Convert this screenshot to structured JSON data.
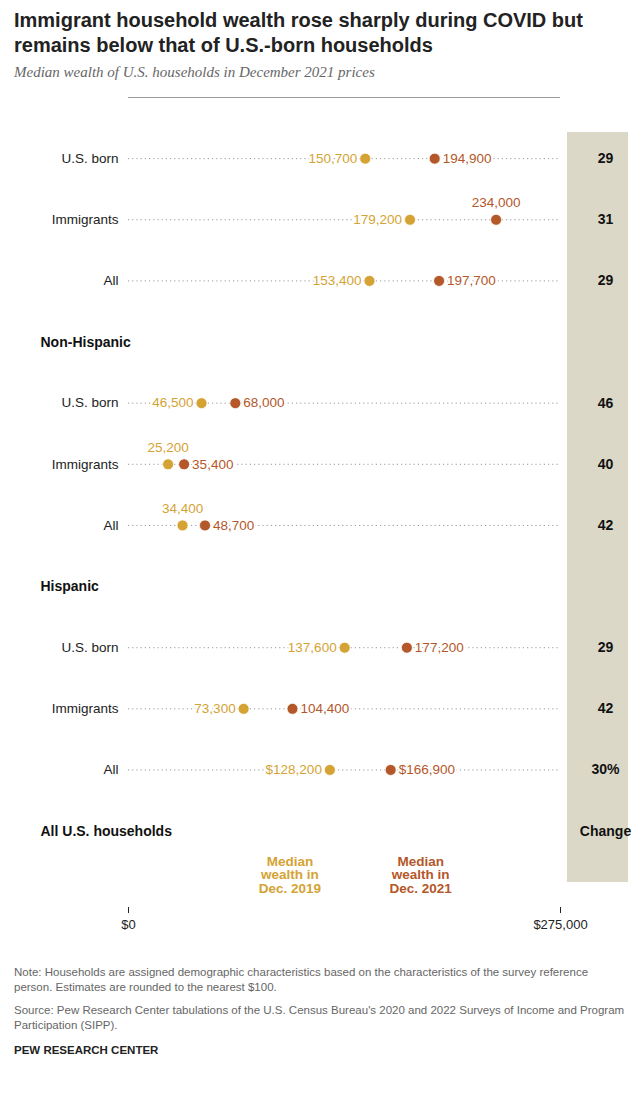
{
  "chart_data": {
    "type": "dot",
    "title": "Immigrant household wealth rose sharply during COVID but remains below that of U.S.-born households",
    "subtitle": "Median wealth of U.S. households in December 2021 prices",
    "groups": [
      {
        "name": "All U.S. households",
        "categories": [
          "All",
          "Immigrants",
          "U.S. born"
        ]
      },
      {
        "name": "Hispanic",
        "categories": [
          "All",
          "Immigrants",
          "U.S. born"
        ]
      },
      {
        "name": "Non-Hispanic",
        "categories": [
          "All",
          "Immigrants",
          "U.S. born"
        ]
      }
    ],
    "series": [
      {
        "name": "Median wealth in Dec. 2019",
        "color": "#d4a334",
        "values": [
          128200,
          73300,
          137600,
          34400,
          25200,
          46500,
          153400,
          179200,
          150700
        ],
        "value_labels": [
          "$128,200",
          "73,300",
          "137,600",
          "34,400",
          "25,200",
          "46,500",
          "153,400",
          "179,200",
          "150,700"
        ]
      },
      {
        "name": "Median wealth in Dec. 2021",
        "color": "#b4582a",
        "values": [
          166900,
          104400,
          177200,
          48700,
          35400,
          68000,
          197700,
          234000,
          194900
        ],
        "value_labels": [
          "$166,900",
          "104,400",
          "177,200",
          "48,700",
          "35,400",
          "68,000",
          "197,700",
          "234,000",
          "194,900"
        ]
      }
    ],
    "change": {
      "name": "Change",
      "values": [
        30,
        42,
        29,
        42,
        40,
        46,
        29,
        31,
        29
      ],
      "value_labels": [
        "30%",
        "42",
        "29",
        "42",
        "40",
        "46",
        "29",
        "31",
        "29"
      ]
    },
    "xlim": [
      0,
      275000
    ],
    "xticks": [
      {
        "value": 0,
        "label": "$0"
      },
      {
        "value": 275000,
        "label": "$275,000"
      }
    ],
    "data_labels": true,
    "legend": "top",
    "note": "Note: Households are assigned demographic characteristics based on the characteristics of the survey reference person. Estimates are rounded to the nearest $100.",
    "source": "Source: Pew Research Center tabulations of the U.S. Census Bureau's 2020 and 2022 Surveys of Income and Program Participation (SIPP).",
    "credit": "PEW RESEARCH CENTER"
  }
}
